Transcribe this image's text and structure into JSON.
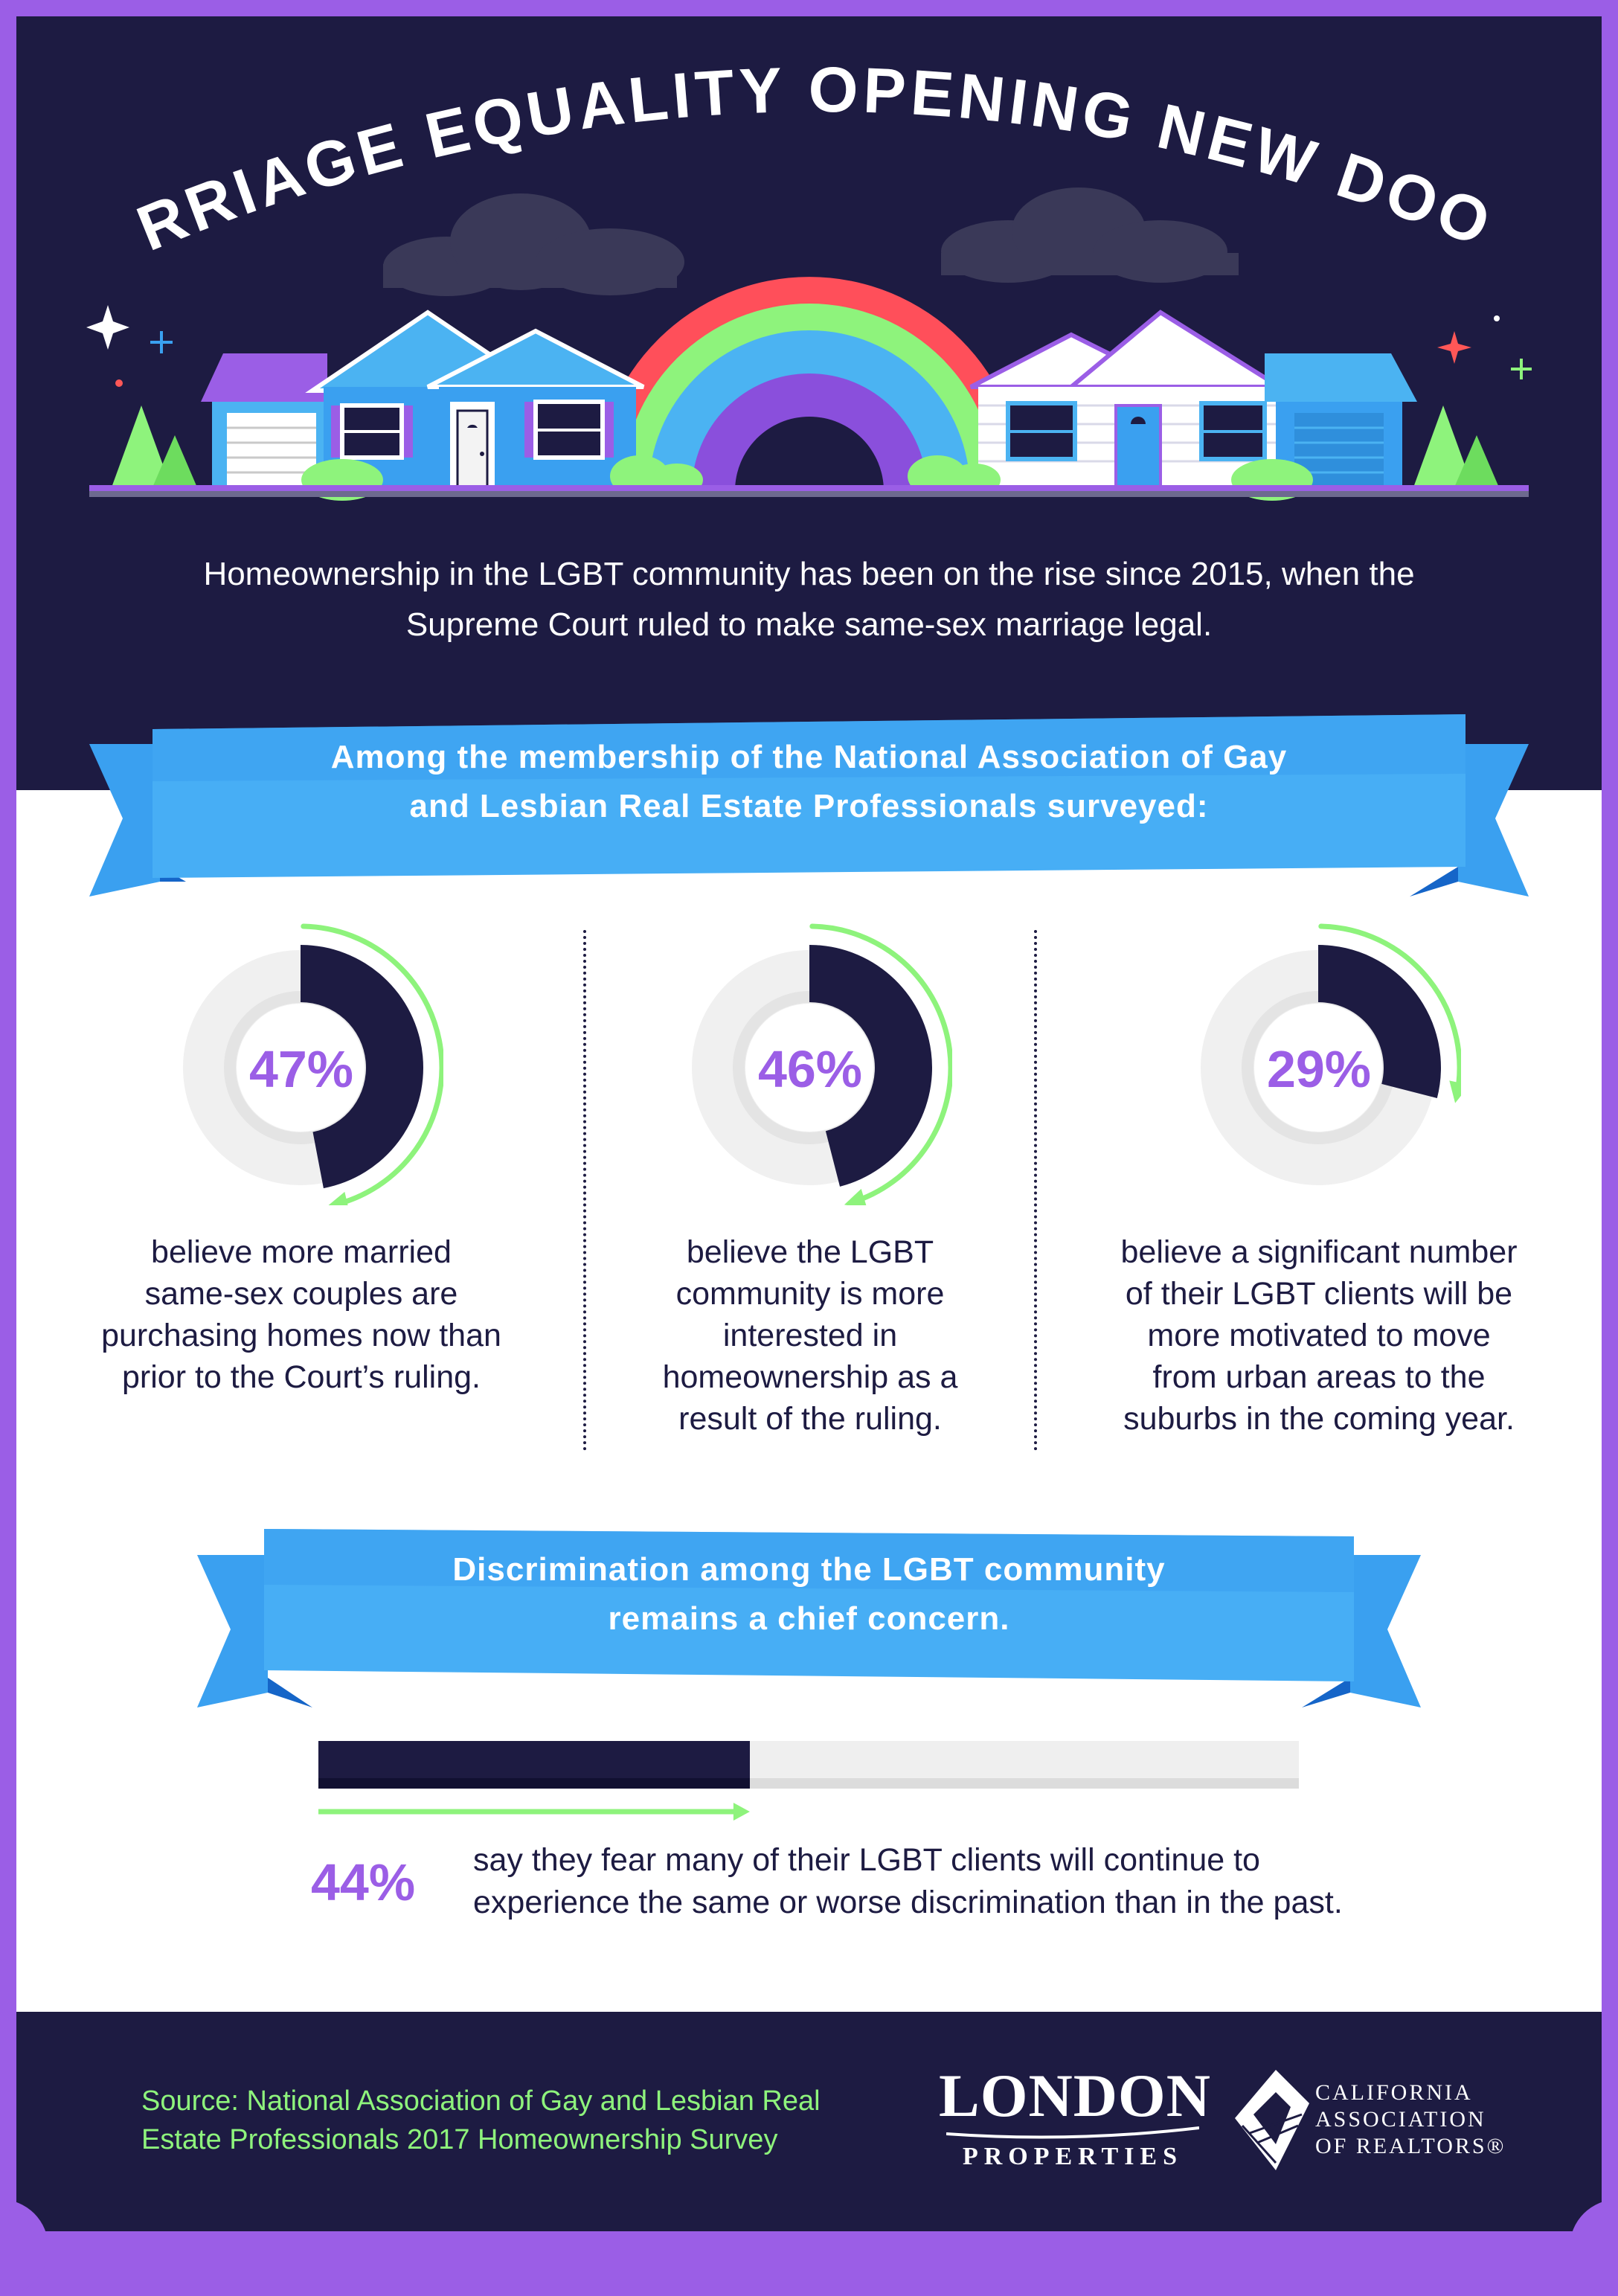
{
  "title": "MARRIAGE EQUALITY OPENING NEW DOORS",
  "intro": {
    "line1": "Homeownership in the LGBT community has been on the rise since 2015, when the",
    "line2": "Supreme Court ruled to make same-sex marriage legal."
  },
  "banner1": {
    "line1": "Among the membership of the National Association of Gay",
    "line2": "and Lesbian Real Estate Professionals surveyed:"
  },
  "stats": [
    {
      "percent_label": "47%",
      "value": 47,
      "desc": [
        "believe more married",
        "same-sex couples are",
        "purchasing homes now than",
        "prior to the Court’s ruling."
      ]
    },
    {
      "percent_label": "46%",
      "value": 46,
      "desc": [
        "believe the LGBT",
        "community is more",
        "interested in",
        "homeownership as a",
        "result of the ruling."
      ]
    },
    {
      "percent_label": "29%",
      "value": 29,
      "desc": [
        "believe a significant number",
        "of their LGBT clients will be",
        "more motivated to move",
        "from urban areas to the",
        "suburbs in the coming year."
      ]
    }
  ],
  "banner2": {
    "line1": "Discrimination among the LGBT community",
    "line2": "remains a chief concern."
  },
  "discrimination": {
    "percent_label": "44%",
    "value": 44,
    "line1": "say they fear many of their LGBT clients will continue to",
    "line2": "experience the same or worse discrimination than in the past."
  },
  "source": {
    "line1": "Source: National Association of Gay and Lesbian Real",
    "line2": "Estate Professionals 2017 Homeownership Survey"
  },
  "logos": {
    "london_title": "LONDON",
    "london_sub": "PROPERTIES",
    "car_line1": "CALIFORNIA",
    "car_line2": "ASSOCIATION",
    "car_line3": "OF REALTORS®"
  },
  "colors": {
    "navy": "#1d1b42",
    "purple": "#9b5ee6",
    "green": "#8ef37c",
    "blue": "#3aa0f0",
    "light_gray": "#efefef"
  }
}
